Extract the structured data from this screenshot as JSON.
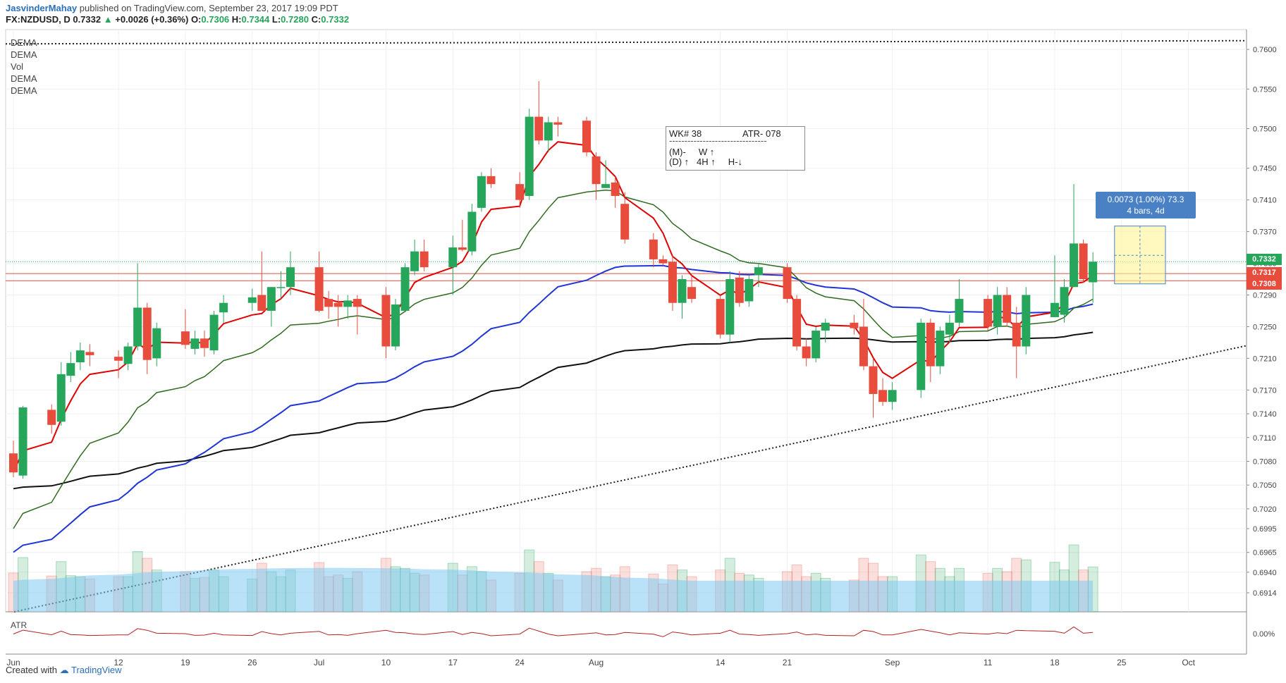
{
  "header": {
    "author": "JasvinderMahay",
    "published": "published on TradingView.com, September 23, 2017 19:09 PDT",
    "symbol": "FX:NZDUSD, D",
    "last": "0.7332",
    "change": "+0.0026 (+0.36%)",
    "open_label": "O:",
    "open": "0.7306",
    "high_label": "H:",
    "high": "0.7344",
    "low_label": "L:",
    "low": "0.7280",
    "close_label": "C:",
    "close": "0.7332"
  },
  "indicators": [
    "DEMA",
    "DEMA",
    "Vol",
    "DEMA",
    "DEMA"
  ],
  "atr_pane": {
    "label": "ATR",
    "value_label": "0.00%"
  },
  "info_box": {
    "line1_left": "WK# 38",
    "line1_right": "ATR- 078",
    "divider": "--------------------------------",
    "line2": "(M)-     W ↑",
    "line3": "(D) ↑   4H ↑     H-↓"
  },
  "measure_tool": {
    "line1": "0.0073 (1.00%) 73.3",
    "line2": "4 bars, 4d"
  },
  "price_labels": [
    {
      "text": "0.7332",
      "value": 0.7332,
      "color": "#26a65b"
    },
    {
      "text": "0.7317",
      "value": 0.7317,
      "color": "#e74c3c"
    },
    {
      "text": "0.7308",
      "value": 0.7308,
      "color": "#e74c3c"
    }
  ],
  "footer": {
    "created_with": "Created with",
    "brand": "TradingView"
  },
  "colors": {
    "up": "#26a65b",
    "down": "#e74c3c",
    "ema_fast": "#e00000",
    "ema_mid": "#2e6b1e",
    "ema_slow": "#1f35d6",
    "ema_long": "#111111",
    "vol_ma": "#7fc8f0"
  },
  "chart_data": {
    "type": "candlestick",
    "ylim": [
      0.689,
      0.7625
    ],
    "y_ticks": [
      "0.7600",
      "0.7550",
      "0.7500",
      "0.7450",
      "0.7410",
      "0.7370",
      "0.7330",
      "0.7290",
      "0.7250",
      "0.7210",
      "0.7170",
      "0.7140",
      "0.7110",
      "0.7080",
      "0.7050",
      "0.7020",
      "0.6995",
      "0.6965",
      "0.6940",
      "0.6914"
    ],
    "x_ticks": [
      "Jun",
      "12",
      "19",
      "26",
      "Jul",
      "10",
      "17",
      "24",
      "Aug",
      "14",
      "21",
      "Sep",
      "11",
      "18",
      "25",
      "Oct"
    ],
    "candles": [
      {
        "date": "2017-06-01",
        "o": 0.709,
        "h": 0.7106,
        "l": 0.706,
        "c": 0.7066
      },
      {
        "date": "2017-06-02",
        "o": 0.7062,
        "h": 0.715,
        "l": 0.7058,
        "c": 0.7148
      },
      {
        "date": "2017-06-05",
        "o": 0.7145,
        "h": 0.7152,
        "l": 0.7115,
        "c": 0.7126
      },
      {
        "date": "2017-06-06",
        "o": 0.713,
        "h": 0.7205,
        "l": 0.7125,
        "c": 0.719
      },
      {
        "date": "2017-06-07",
        "o": 0.7188,
        "h": 0.7218,
        "l": 0.718,
        "c": 0.7204
      },
      {
        "date": "2017-06-08",
        "o": 0.7205,
        "h": 0.723,
        "l": 0.7195,
        "c": 0.722
      },
      {
        "date": "2017-06-09",
        "o": 0.7218,
        "h": 0.7228,
        "l": 0.72,
        "c": 0.7214
      },
      {
        "date": "2017-06-12",
        "o": 0.7212,
        "h": 0.722,
        "l": 0.7185,
        "c": 0.7207
      },
      {
        "date": "2017-06-13",
        "o": 0.7203,
        "h": 0.723,
        "l": 0.7195,
        "c": 0.7225
      },
      {
        "date": "2017-06-14",
        "o": 0.7225,
        "h": 0.733,
        "l": 0.722,
        "c": 0.7274
      },
      {
        "date": "2017-06-15",
        "o": 0.7274,
        "h": 0.728,
        "l": 0.719,
        "c": 0.7208
      },
      {
        "date": "2017-06-16",
        "o": 0.721,
        "h": 0.7255,
        "l": 0.72,
        "c": 0.7248
      },
      {
        "date": "2017-06-19",
        "o": 0.7244,
        "h": 0.7272,
        "l": 0.7222,
        "c": 0.7227
      },
      {
        "date": "2017-06-20",
        "o": 0.7222,
        "h": 0.7245,
        "l": 0.7215,
        "c": 0.7235
      },
      {
        "date": "2017-06-21",
        "o": 0.7235,
        "h": 0.7245,
        "l": 0.7212,
        "c": 0.7223
      },
      {
        "date": "2017-06-22",
        "o": 0.722,
        "h": 0.727,
        "l": 0.7215,
        "c": 0.7265
      },
      {
        "date": "2017-06-23",
        "o": 0.7268,
        "h": 0.729,
        "l": 0.7255,
        "c": 0.728
      },
      {
        "date": "2017-06-26",
        "o": 0.728,
        "h": 0.7298,
        "l": 0.727,
        "c": 0.7287
      },
      {
        "date": "2017-06-27",
        "o": 0.729,
        "h": 0.7345,
        "l": 0.727,
        "c": 0.727
      },
      {
        "date": "2017-06-28",
        "o": 0.727,
        "h": 0.73,
        "l": 0.725,
        "c": 0.73
      },
      {
        "date": "2017-06-29",
        "o": 0.73,
        "h": 0.732,
        "l": 0.7285,
        "c": 0.73
      },
      {
        "date": "2017-06-30",
        "o": 0.73,
        "h": 0.7345,
        "l": 0.729,
        "c": 0.7325
      },
      {
        "date": "2017-07-03",
        "o": 0.7325,
        "h": 0.7345,
        "l": 0.7268,
        "c": 0.727
      },
      {
        "date": "2017-07-04",
        "o": 0.7285,
        "h": 0.7295,
        "l": 0.726,
        "c": 0.7275
      },
      {
        "date": "2017-07-05",
        "o": 0.728,
        "h": 0.729,
        "l": 0.725,
        "c": 0.7275
      },
      {
        "date": "2017-07-06",
        "o": 0.7275,
        "h": 0.729,
        "l": 0.726,
        "c": 0.7283
      },
      {
        "date": "2017-07-07",
        "o": 0.7285,
        "h": 0.729,
        "l": 0.724,
        "c": 0.7275
      },
      {
        "date": "2017-07-10",
        "o": 0.729,
        "h": 0.73,
        "l": 0.721,
        "c": 0.7225
      },
      {
        "date": "2017-07-11",
        "o": 0.7225,
        "h": 0.7285,
        "l": 0.722,
        "c": 0.7278
      },
      {
        "date": "2017-07-12",
        "o": 0.727,
        "h": 0.733,
        "l": 0.727,
        "c": 0.7325
      },
      {
        "date": "2017-07-13",
        "o": 0.732,
        "h": 0.736,
        "l": 0.7315,
        "c": 0.7345
      },
      {
        "date": "2017-07-14",
        "o": 0.7345,
        "h": 0.736,
        "l": 0.732,
        "c": 0.7325
      },
      {
        "date": "2017-07-17",
        "o": 0.7325,
        "h": 0.7365,
        "l": 0.729,
        "c": 0.735
      },
      {
        "date": "2017-07-18",
        "o": 0.735,
        "h": 0.7385,
        "l": 0.7345,
        "c": 0.7347
      },
      {
        "date": "2017-07-19",
        "o": 0.7345,
        "h": 0.7405,
        "l": 0.734,
        "c": 0.7395
      },
      {
        "date": "2017-07-20",
        "o": 0.74,
        "h": 0.7445,
        "l": 0.7395,
        "c": 0.744
      },
      {
        "date": "2017-07-21",
        "o": 0.744,
        "h": 0.745,
        "l": 0.7425,
        "c": 0.743
      },
      {
        "date": "2017-07-24",
        "o": 0.743,
        "h": 0.7445,
        "l": 0.74,
        "c": 0.741
      },
      {
        "date": "2017-07-25",
        "o": 0.7415,
        "h": 0.7525,
        "l": 0.741,
        "c": 0.7515
      },
      {
        "date": "2017-07-26",
        "o": 0.7515,
        "h": 0.756,
        "l": 0.748,
        "c": 0.7485
      },
      {
        "date": "2017-07-27",
        "o": 0.7485,
        "h": 0.7515,
        "l": 0.747,
        "c": 0.7508
      },
      {
        "date": "2017-07-28",
        "o": 0.7508,
        "h": 0.7515,
        "l": 0.749,
        "c": 0.7505
      },
      {
        "date": "2017-07-31",
        "o": 0.751,
        "h": 0.7515,
        "l": 0.7465,
        "c": 0.747
      },
      {
        "date": "2017-08-01",
        "o": 0.7465,
        "h": 0.747,
        "l": 0.741,
        "c": 0.743
      },
      {
        "date": "2017-08-02",
        "o": 0.7425,
        "h": 0.746,
        "l": 0.7425,
        "c": 0.743
      },
      {
        "date": "2017-08-03",
        "o": 0.7432,
        "h": 0.744,
        "l": 0.74,
        "c": 0.7415
      },
      {
        "date": "2017-08-04",
        "o": 0.7405,
        "h": 0.742,
        "l": 0.7355,
        "c": 0.736
      },
      {
        "date": "2017-08-07",
        "o": 0.736,
        "h": 0.7368,
        "l": 0.7325,
        "c": 0.7335
      },
      {
        "date": "2017-08-08",
        "o": 0.7335,
        "h": 0.734,
        "l": 0.7327,
        "c": 0.733
      },
      {
        "date": "2017-08-09",
        "o": 0.7332,
        "h": 0.734,
        "l": 0.727,
        "c": 0.728
      },
      {
        "date": "2017-08-10",
        "o": 0.728,
        "h": 0.7315,
        "l": 0.726,
        "c": 0.731
      },
      {
        "date": "2017-08-11",
        "o": 0.73,
        "h": 0.7315,
        "l": 0.728,
        "c": 0.7285
      },
      {
        "date": "2017-08-14",
        "o": 0.7285,
        "h": 0.729,
        "l": 0.7235,
        "c": 0.724
      },
      {
        "date": "2017-08-15",
        "o": 0.724,
        "h": 0.732,
        "l": 0.723,
        "c": 0.731
      },
      {
        "date": "2017-08-16",
        "o": 0.7312,
        "h": 0.732,
        "l": 0.7275,
        "c": 0.728
      },
      {
        "date": "2017-08-17",
        "o": 0.7282,
        "h": 0.7315,
        "l": 0.7275,
        "c": 0.731
      },
      {
        "date": "2017-08-18",
        "o": 0.7315,
        "h": 0.733,
        "l": 0.73,
        "c": 0.7325
      },
      {
        "date": "2017-08-21",
        "o": 0.7325,
        "h": 0.733,
        "l": 0.728,
        "c": 0.7285
      },
      {
        "date": "2017-08-22",
        "o": 0.7285,
        "h": 0.729,
        "l": 0.722,
        "c": 0.7225
      },
      {
        "date": "2017-08-23",
        "o": 0.7225,
        "h": 0.7235,
        "l": 0.72,
        "c": 0.721
      },
      {
        "date": "2017-08-24",
        "o": 0.721,
        "h": 0.725,
        "l": 0.7205,
        "c": 0.7245
      },
      {
        "date": "2017-08-25",
        "o": 0.7245,
        "h": 0.726,
        "l": 0.723,
        "c": 0.7255
      },
      {
        "date": "2017-08-28",
        "o": 0.7255,
        "h": 0.7265,
        "l": 0.724,
        "c": 0.7248
      },
      {
        "date": "2017-08-29",
        "o": 0.725,
        "h": 0.7285,
        "l": 0.7195,
        "c": 0.72
      },
      {
        "date": "2017-08-30",
        "o": 0.72,
        "h": 0.721,
        "l": 0.7135,
        "c": 0.7165
      },
      {
        "date": "2017-08-31",
        "o": 0.717,
        "h": 0.7185,
        "l": 0.715,
        "c": 0.7155
      },
      {
        "date": "2017-09-01",
        "o": 0.7155,
        "h": 0.718,
        "l": 0.7145,
        "c": 0.717
      },
      {
        "date": "2017-09-04",
        "o": 0.717,
        "h": 0.726,
        "l": 0.716,
        "c": 0.7255
      },
      {
        "date": "2017-09-05",
        "o": 0.7255,
        "h": 0.726,
        "l": 0.718,
        "c": 0.72
      },
      {
        "date": "2017-09-06",
        "o": 0.72,
        "h": 0.725,
        "l": 0.719,
        "c": 0.7245
      },
      {
        "date": "2017-09-07",
        "o": 0.724,
        "h": 0.7265,
        "l": 0.723,
        "c": 0.7255
      },
      {
        "date": "2017-09-08",
        "o": 0.7255,
        "h": 0.731,
        "l": 0.725,
        "c": 0.7285
      },
      {
        "date": "2017-09-11",
        "o": 0.7285,
        "h": 0.729,
        "l": 0.7245,
        "c": 0.725
      },
      {
        "date": "2017-09-12",
        "o": 0.725,
        "h": 0.73,
        "l": 0.724,
        "c": 0.729
      },
      {
        "date": "2017-09-13",
        "o": 0.729,
        "h": 0.73,
        "l": 0.725,
        "c": 0.7255
      },
      {
        "date": "2017-09-14",
        "o": 0.7255,
        "h": 0.7275,
        "l": 0.7185,
        "c": 0.7225
      },
      {
        "date": "2017-09-15",
        "o": 0.7225,
        "h": 0.73,
        "l": 0.7215,
        "c": 0.729
      },
      {
        "date": "2017-09-18",
        "o": 0.7262,
        "h": 0.734,
        "l": 0.7262,
        "c": 0.728
      },
      {
        "date": "2017-09-19",
        "o": 0.7265,
        "h": 0.731,
        "l": 0.7255,
        "c": 0.73
      },
      {
        "date": "2017-09-20",
        "o": 0.73,
        "h": 0.743,
        "l": 0.73,
        "c": 0.7355
      },
      {
        "date": "2017-09-21",
        "o": 0.7355,
        "h": 0.736,
        "l": 0.7305,
        "c": 0.731
      },
      {
        "date": "2017-09-22",
        "o": 0.7306,
        "h": 0.7344,
        "l": 0.728,
        "c": 0.7332
      }
    ]
  }
}
